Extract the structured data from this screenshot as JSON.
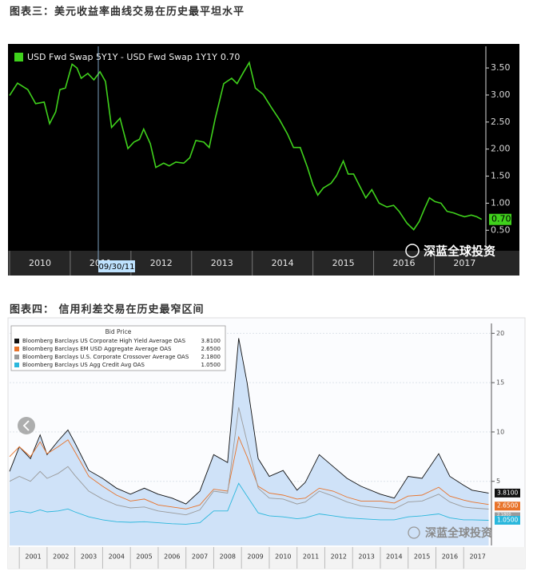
{
  "chart_data": [
    {
      "type": "line",
      "title": "图表三：美元收益率曲线交易在历史最平坦水平",
      "cursor_label": "09/30/11",
      "watermark": "深蓝全球投资",
      "x": [
        2010.0,
        2010.13,
        2010.3,
        2010.43,
        2010.57,
        2010.66,
        2010.76,
        2010.83,
        2010.92,
        2011.03,
        2011.11,
        2011.18,
        2011.29,
        2011.39,
        2011.49,
        2011.58,
        2011.68,
        2011.82,
        2011.95,
        2012.05,
        2012.14,
        2012.21,
        2012.32,
        2012.41,
        2012.54,
        2012.63,
        2012.74,
        2012.87,
        2012.97,
        2013.07,
        2013.2,
        2013.29,
        2013.39,
        2013.53,
        2013.66,
        2013.75,
        2013.86,
        2013.95,
        2014.05,
        2014.18,
        2014.32,
        2014.45,
        2014.58,
        2014.68,
        2014.79,
        2014.91,
        2015.0,
        2015.08,
        2015.17,
        2015.3,
        2015.39,
        2015.5,
        2015.58,
        2015.67,
        2015.76,
        2015.87,
        2015.97,
        2016.09,
        2016.22,
        2016.33,
        2016.42,
        2016.55,
        2016.66,
        2016.75,
        2016.84,
        2016.92,
        2017.01,
        2017.11,
        2017.21,
        2017.32,
        2017.41,
        2017.5,
        2017.61,
        2017.7,
        2017.78
      ],
      "series": [
        {
          "name": "USD Fwd Swap 5Y1Y - USD Fwd Swap 1Y1Y",
          "color": "#3fd11c",
          "last_label": "0.70",
          "values": [
            2.99,
            3.22,
            3.1,
            2.84,
            2.87,
            2.47,
            2.69,
            3.1,
            3.13,
            3.57,
            3.5,
            3.31,
            3.4,
            3.28,
            3.43,
            3.25,
            2.4,
            2.57,
            2.01,
            2.13,
            2.18,
            2.37,
            2.1,
            1.66,
            1.74,
            1.69,
            1.76,
            1.74,
            1.84,
            2.16,
            2.13,
            2.03,
            2.57,
            3.21,
            3.31,
            3.21,
            3.43,
            3.6,
            3.13,
            3.01,
            2.76,
            2.54,
            2.28,
            2.03,
            2.03,
            1.66,
            1.34,
            1.15,
            1.28,
            1.37,
            1.51,
            1.78,
            1.54,
            1.54,
            1.34,
            1.1,
            1.25,
            1.0,
            0.93,
            0.96,
            0.85,
            0.63,
            0.51,
            0.66,
            0.9,
            1.1,
            1.03,
            1.0,
            0.85,
            0.82,
            0.78,
            0.75,
            0.78,
            0.75,
            0.7
          ]
        }
      ],
      "xlim": [
        2010,
        2017.85
      ],
      "xticks": [
        2010,
        2011,
        2012,
        2013,
        2014,
        2015,
        2016,
        2017
      ],
      "ylim": [
        0.15,
        3.9
      ],
      "yticks": [
        {
          "value": 0.5,
          "label": "0.50"
        },
        {
          "value": 1.0,
          "label": "1.00"
        },
        {
          "value": 1.5,
          "label": "1.50"
        },
        {
          "value": 2.0,
          "label": "2.00"
        },
        {
          "value": 2.5,
          "label": "2.50"
        },
        {
          "value": 3.0,
          "label": "3.00"
        },
        {
          "value": 3.5,
          "label": "3.50"
        }
      ],
      "grid": false
    },
    {
      "type": "line",
      "title": "图表四： 信用利差交易在历史最窄区间",
      "legend_title": "Bid Price",
      "watermark": "深蓝全球投资",
      "x": [
        2000.65,
        2001.0,
        2001.4,
        2001.75,
        2002.0,
        2002.4,
        2002.75,
        2003.0,
        2003.5,
        2004.0,
        2004.5,
        2005.0,
        2005.5,
        2006.0,
        2006.5,
        2007.0,
        2007.5,
        2008.0,
        2008.5,
        2008.9,
        2009.2,
        2009.6,
        2010.0,
        2010.5,
        2011.0,
        2011.3,
        2011.8,
        2012.3,
        2012.8,
        2013.3,
        2014.0,
        2014.5,
        2015.0,
        2015.5,
        2016.1,
        2016.5,
        2017.0,
        2017.3,
        2017.9
      ],
      "series": [
        {
          "name": "Bloomberg Barclays US Corporate High Yield Average OAS",
          "color": "#111111",
          "fill": "#cfe2f8",
          "last_label": "3.8100",
          "values": [
            6.0,
            8.5,
            7.3,
            9.7,
            7.7,
            9.1,
            10.2,
            8.9,
            6.1,
            5.3,
            4.3,
            3.7,
            4.3,
            3.7,
            3.3,
            2.7,
            4.0,
            7.7,
            6.9,
            19.5,
            15.0,
            7.3,
            5.5,
            6.1,
            4.1,
            4.9,
            7.7,
            6.5,
            5.3,
            4.5,
            3.7,
            3.3,
            5.5,
            5.3,
            7.8,
            5.5,
            4.6,
            4.1,
            3.81
          ]
        },
        {
          "name": "Bloomberg Barclays EM USD Aggregate Average OAS",
          "color": "#e8732a",
          "last_label": "2.6500",
          "values": [
            7.5,
            8.5,
            7.5,
            9.0,
            7.8,
            8.5,
            9.2,
            8.0,
            5.5,
            4.5,
            3.6,
            3.0,
            3.2,
            2.6,
            2.4,
            2.2,
            2.6,
            4.2,
            4.0,
            9.5,
            7.5,
            4.5,
            3.8,
            3.6,
            3.2,
            3.3,
            4.3,
            4.0,
            3.4,
            3.0,
            3.0,
            2.8,
            3.5,
            3.6,
            4.4,
            3.5,
            3.1,
            2.9,
            2.65
          ]
        },
        {
          "name": "Bloomberg Barclays U.S. Corporate Crossover Average OAS",
          "color": "#9a9a9a",
          "last_label": "2.1800",
          "values": [
            5.0,
            5.5,
            5.0,
            6.0,
            5.3,
            5.8,
            6.5,
            5.6,
            4.0,
            3.2,
            2.6,
            2.3,
            2.4,
            2.0,
            1.8,
            1.6,
            2.1,
            4.0,
            3.8,
            12.5,
            9.0,
            4.3,
            3.3,
            3.2,
            2.7,
            2.9,
            4.0,
            3.5,
            2.9,
            2.5,
            2.3,
            2.2,
            2.9,
            3.0,
            3.7,
            2.9,
            2.4,
            2.3,
            2.18
          ]
        },
        {
          "name": "Bloomberg Barclays US Agg Credit Avg OAS",
          "color": "#2ab7dc",
          "last_label": "1.0500",
          "values": [
            1.8,
            2.0,
            1.8,
            2.1,
            1.9,
            2.0,
            2.2,
            1.9,
            1.4,
            1.1,
            0.9,
            0.85,
            0.9,
            0.8,
            0.7,
            0.65,
            0.8,
            2.0,
            2.0,
            4.8,
            3.5,
            1.8,
            1.5,
            1.4,
            1.2,
            1.3,
            1.7,
            1.5,
            1.3,
            1.2,
            1.1,
            1.1,
            1.4,
            1.5,
            1.7,
            1.3,
            1.1,
            1.1,
            1.05
          ]
        }
      ],
      "xlim": [
        2000.65,
        2018.0
      ],
      "xticks": [
        2001,
        2002,
        2003,
        2004,
        2005,
        2006,
        2007,
        2008,
        2009,
        2010,
        2011,
        2012,
        2013,
        2014,
        2015,
        2016,
        2017
      ],
      "ylim": [
        -1.5,
        21
      ],
      "yticks": [
        5,
        10,
        15,
        20
      ],
      "grid": true
    }
  ]
}
